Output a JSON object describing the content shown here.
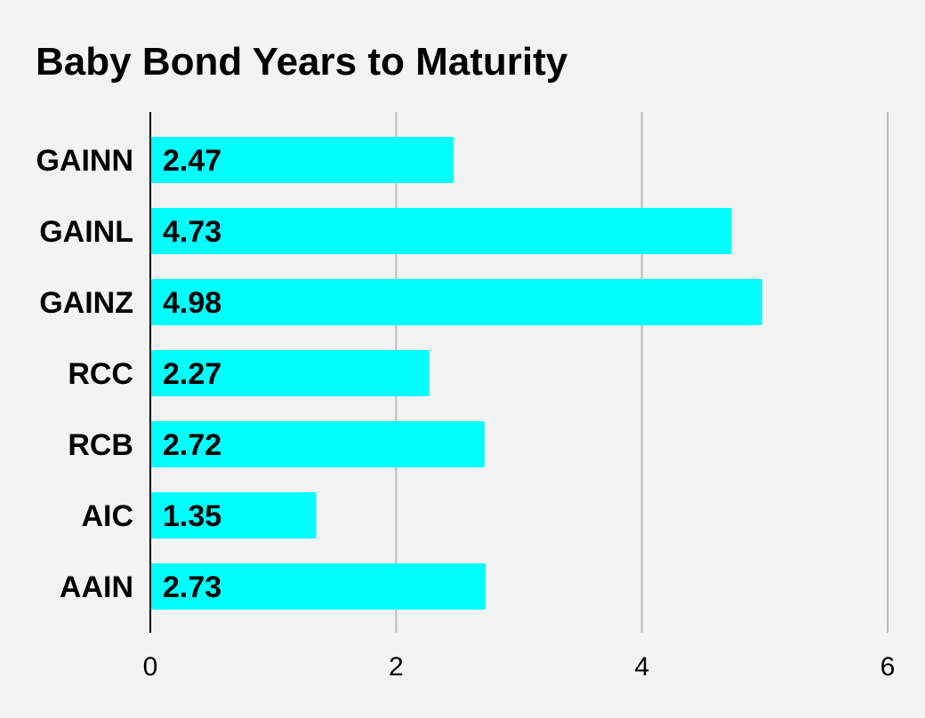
{
  "chart_data": {
    "type": "bar",
    "orientation": "horizontal",
    "title": "Baby Bond Years to Maturity",
    "categories": [
      "GAINN",
      "GAINL",
      "GAINZ",
      "RCC",
      "RCB",
      "AIC",
      "AAIN"
    ],
    "values": [
      2.47,
      4.73,
      4.98,
      2.27,
      2.72,
      1.35,
      2.73
    ],
    "value_labels": [
      "2.47",
      "4.73",
      "4.98",
      "2.27",
      "2.72",
      "1.35",
      "2.73"
    ],
    "xlim": [
      0,
      6
    ],
    "xticks": [
      0,
      2,
      4,
      6
    ],
    "xtick_labels": [
      "0",
      "2",
      "4",
      "6"
    ],
    "xlabel": "",
    "ylabel": "",
    "grid": true,
    "bar_color": "#00ffff",
    "background_color": "#f3f3f3",
    "gridline_color": "#bcbcbc"
  }
}
